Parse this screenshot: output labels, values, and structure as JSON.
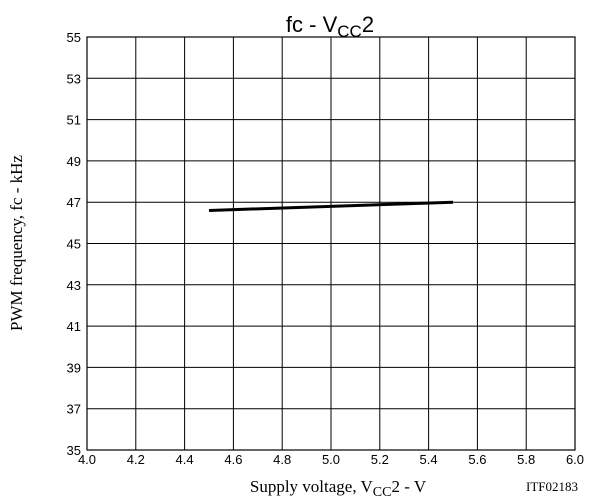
{
  "chart_data": {
    "type": "line",
    "title": {
      "main": "fc - V",
      "sub": "CC",
      "suffix": "2"
    },
    "xlabel": {
      "main": "Supply voltage, V",
      "sub": "CC",
      "suffix": "2 - V"
    },
    "ylabel": "PWM frequency, fc - kHz",
    "code": "ITF02183",
    "xlim": [
      4.0,
      6.0
    ],
    "ylim": [
      35,
      55
    ],
    "grid": true,
    "x_ticks": [
      "4.0",
      "4.2",
      "4.4",
      "4.6",
      "4.8",
      "5.0",
      "5.2",
      "5.4",
      "5.6",
      "5.8",
      "6.0"
    ],
    "y_ticks": [
      "35",
      "37",
      "39",
      "41",
      "43",
      "45",
      "47",
      "49",
      "51",
      "53",
      "55"
    ],
    "series": [
      {
        "x": [
          4.5,
          5.5
        ],
        "y": [
          46.6,
          47.0
        ]
      }
    ]
  }
}
